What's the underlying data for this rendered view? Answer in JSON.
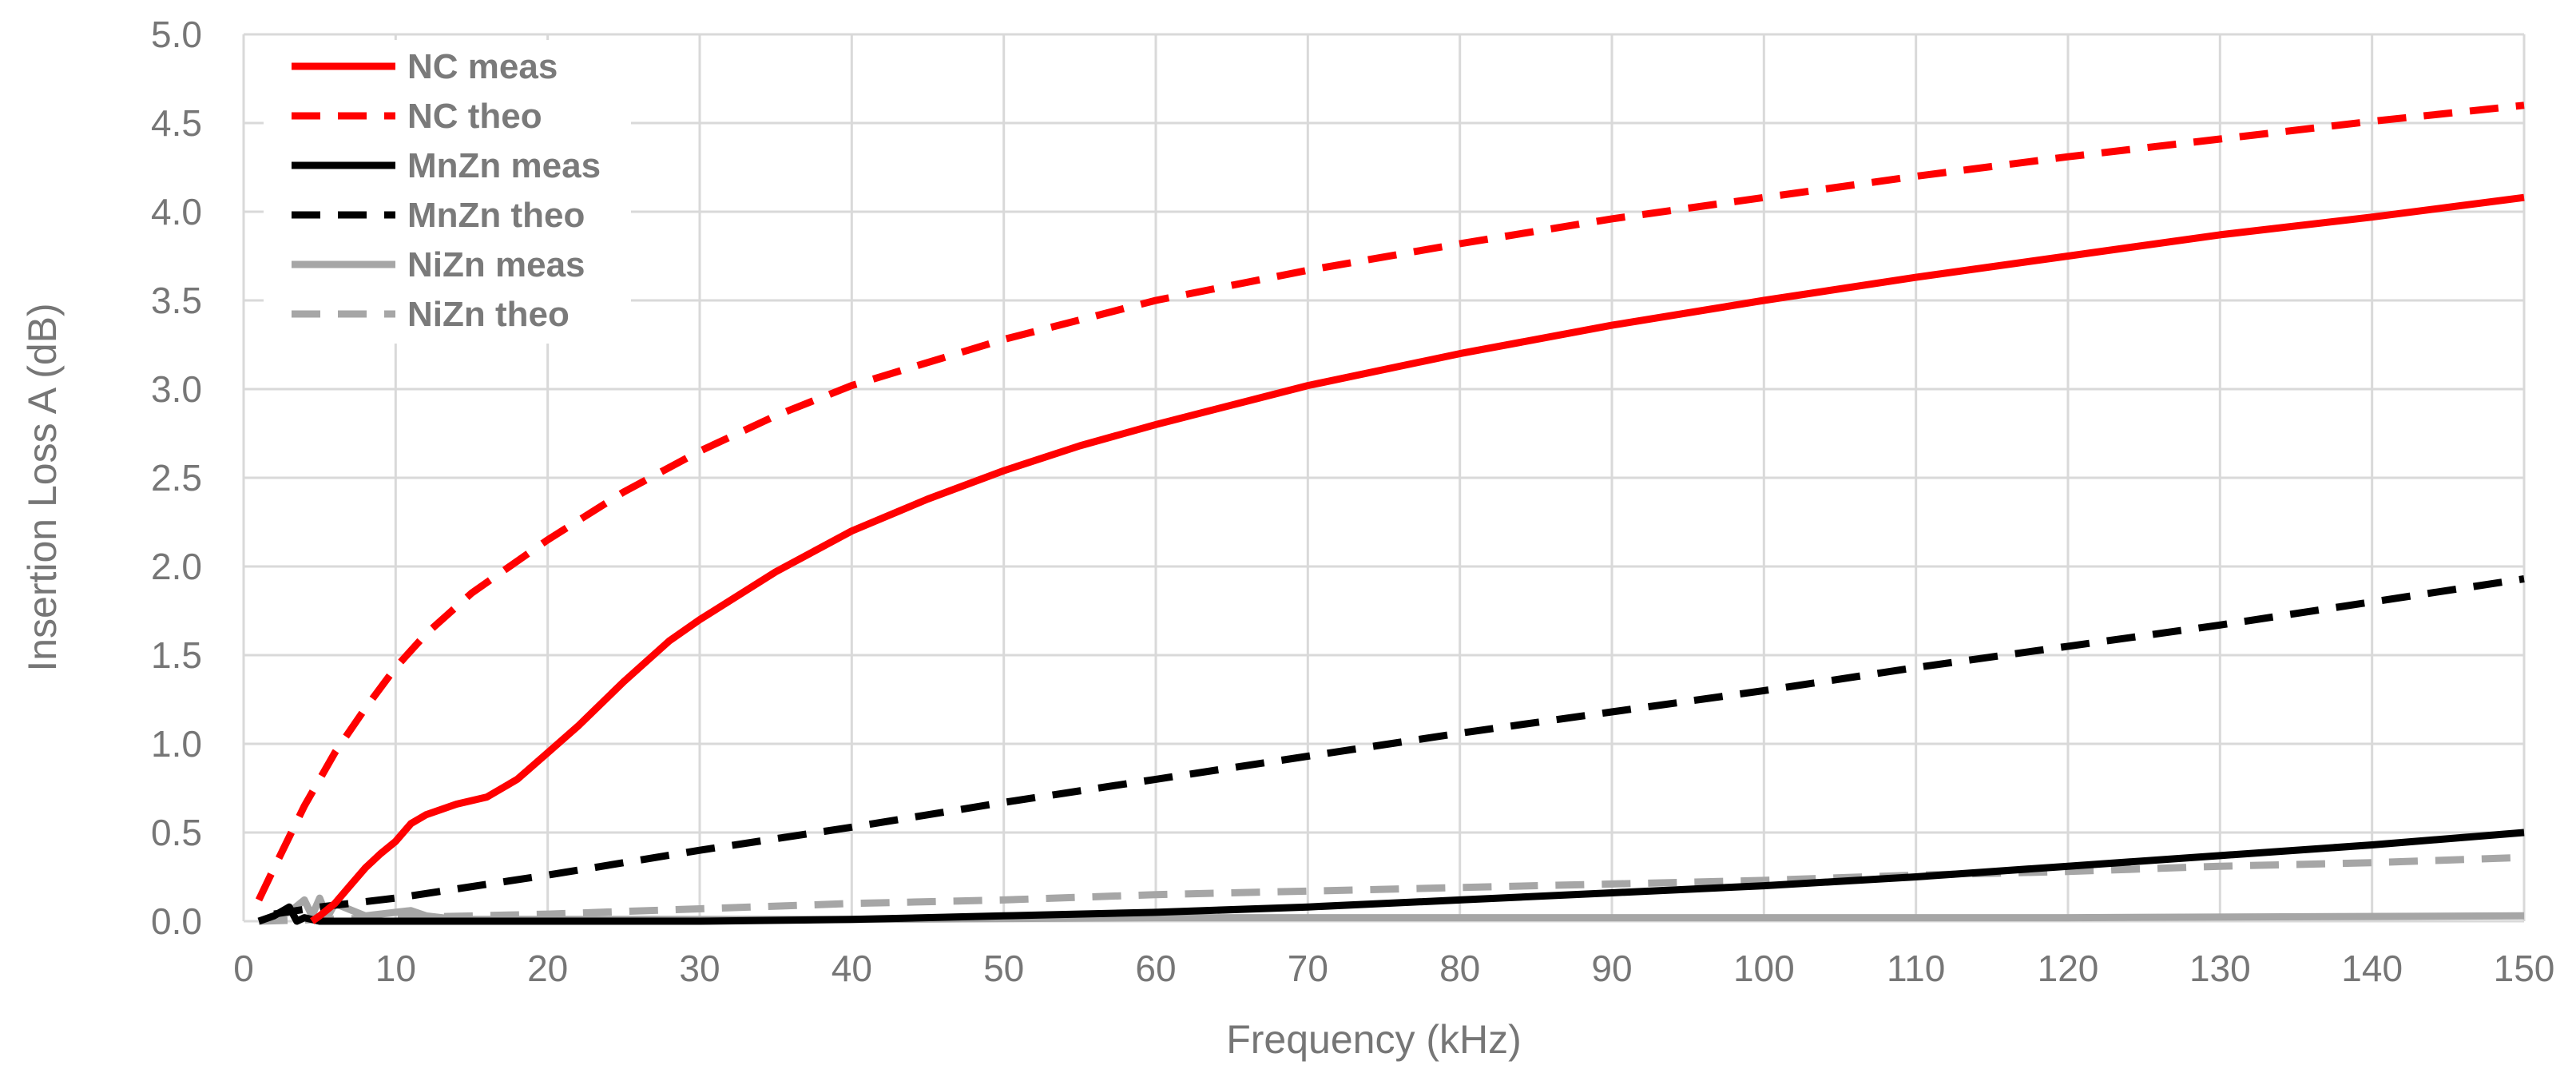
{
  "chart_data": {
    "type": "line",
    "title": "",
    "xlabel": "Frequency (kHz)",
    "ylabel": "Insertion Loss A (dB)",
    "xlim": [
      0,
      150
    ],
    "ylim": [
      0,
      5
    ],
    "x_ticks": [
      "0",
      "10",
      "20",
      "30",
      "40",
      "50",
      "60",
      "70",
      "80",
      "90",
      "100",
      "110",
      "120",
      "130",
      "140",
      "150"
    ],
    "y_ticks": [
      "0.0",
      "0.5",
      "1.0",
      "1.5",
      "2.0",
      "2.5",
      "3.0",
      "3.5",
      "4.0",
      "4.5",
      "5.0"
    ],
    "grid": true,
    "legend_position": "top-left",
    "series": [
      {
        "name": "NC meas",
        "color": "#ff0000",
        "style": "solid",
        "x": [
          4.5,
          5,
          6,
          7,
          8,
          9,
          10,
          11,
          12,
          14,
          16,
          18,
          20,
          22,
          25,
          28,
          30,
          35,
          40,
          45,
          50,
          55,
          60,
          70,
          80,
          90,
          100,
          110,
          120,
          130,
          140,
          150
        ],
        "y": [
          0.0,
          0.03,
          0.1,
          0.2,
          0.3,
          0.38,
          0.45,
          0.55,
          0.6,
          0.66,
          0.7,
          0.8,
          0.95,
          1.1,
          1.35,
          1.58,
          1.7,
          1.97,
          2.2,
          2.38,
          2.54,
          2.68,
          2.8,
          3.02,
          3.2,
          3.36,
          3.5,
          3.63,
          3.75,
          3.87,
          3.97,
          4.08
        ]
      },
      {
        "name": "NC theo",
        "color": "#ff0000",
        "style": "dashed",
        "x": [
          1,
          2,
          4,
          6,
          8,
          10,
          12,
          15,
          18,
          20,
          25,
          30,
          35,
          40,
          50,
          60,
          70,
          80,
          90,
          100,
          110,
          120,
          130,
          140,
          150
        ],
        "y": [
          0.12,
          0.3,
          0.65,
          0.95,
          1.2,
          1.43,
          1.62,
          1.85,
          2.03,
          2.15,
          2.42,
          2.65,
          2.85,
          3.02,
          3.28,
          3.5,
          3.67,
          3.82,
          3.96,
          4.08,
          4.2,
          4.31,
          4.41,
          4.51,
          4.6
        ]
      },
      {
        "name": "MnZn meas",
        "color": "#000000",
        "style": "solid",
        "x": [
          1,
          2,
          3,
          3.5,
          4,
          5,
          8,
          12,
          20,
          30,
          40,
          50,
          60,
          70,
          80,
          90,
          100,
          110,
          120,
          130,
          140,
          150
        ],
        "y": [
          0.0,
          0.03,
          0.08,
          0.0,
          0.02,
          0.0,
          0.0,
          0.0,
          0.0,
          0.0,
          0.01,
          0.03,
          0.05,
          0.08,
          0.12,
          0.16,
          0.2,
          0.25,
          0.31,
          0.37,
          0.43,
          0.5
        ]
      },
      {
        "name": "MnZn theo",
        "color": "#000000",
        "style": "dashed",
        "x": [
          2,
          5,
          10,
          20,
          30,
          40,
          50,
          60,
          70,
          80,
          90,
          100,
          110,
          120,
          130,
          140,
          150
        ],
        "y": [
          0.04,
          0.08,
          0.13,
          0.26,
          0.4,
          0.53,
          0.67,
          0.8,
          0.93,
          1.06,
          1.18,
          1.3,
          1.43,
          1.55,
          1.67,
          1.8,
          1.93
        ]
      },
      {
        "name": "NiZn meas",
        "color": "#a6a6a6",
        "style": "solid",
        "x": [
          1,
          3,
          4,
          4.5,
          5,
          5.5,
          6,
          8,
          10,
          11,
          12,
          14,
          16,
          20,
          30,
          40,
          60,
          80,
          100,
          120,
          150
        ],
        "y": [
          0.0,
          0.05,
          0.12,
          0.03,
          0.13,
          0.02,
          0.1,
          0.03,
          0.05,
          0.06,
          0.03,
          0.01,
          0.01,
          0.01,
          0.01,
          0.01,
          0.02,
          0.02,
          0.02,
          0.02,
          0.03
        ]
      },
      {
        "name": "NiZn theo",
        "color": "#a6a6a6",
        "style": "dashed",
        "x": [
          1,
          5,
          10,
          20,
          30,
          40,
          50,
          60,
          70,
          80,
          90,
          100,
          110,
          120,
          130,
          140,
          150
        ],
        "y": [
          0.0,
          0.01,
          0.02,
          0.04,
          0.07,
          0.1,
          0.12,
          0.15,
          0.17,
          0.19,
          0.21,
          0.23,
          0.26,
          0.28,
          0.31,
          0.33,
          0.36
        ]
      }
    ]
  }
}
